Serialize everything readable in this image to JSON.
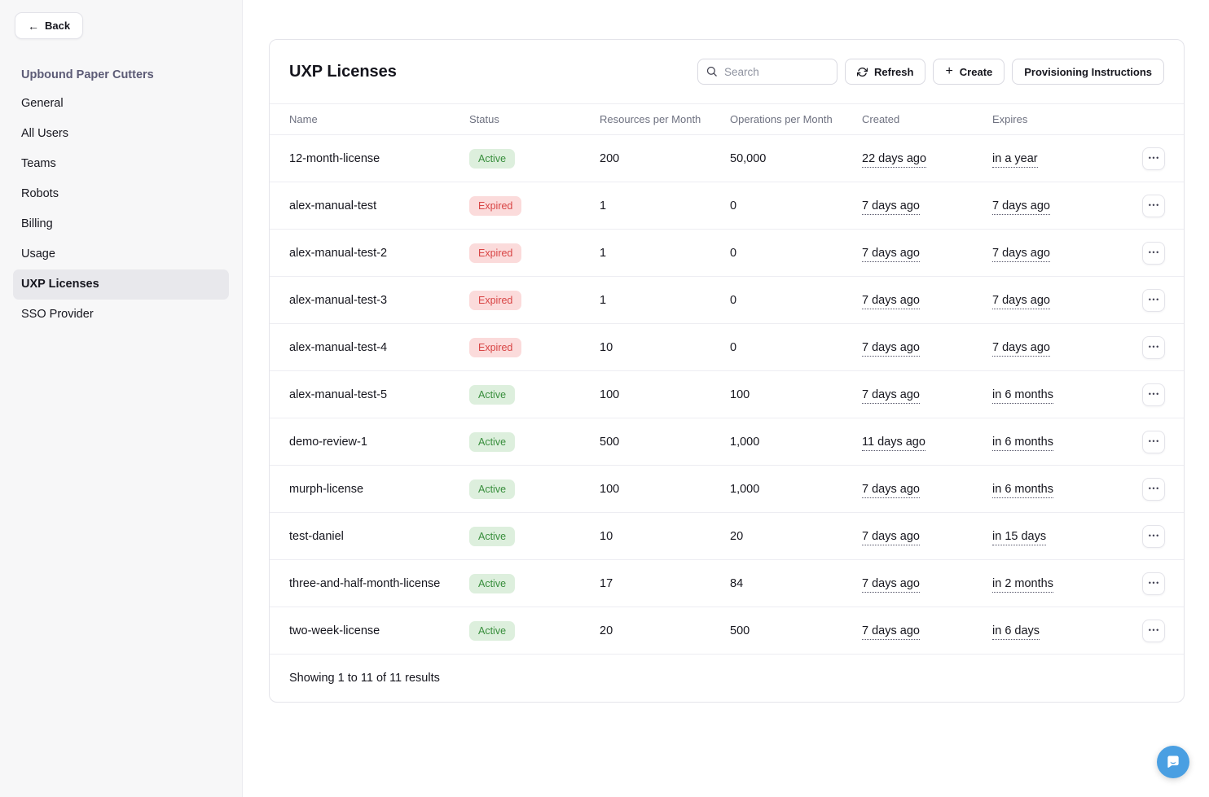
{
  "sidebar": {
    "back_label": "Back",
    "org_title": "Upbound Paper Cutters",
    "items": [
      {
        "label": "General",
        "active": false
      },
      {
        "label": "All Users",
        "active": false
      },
      {
        "label": "Teams",
        "active": false
      },
      {
        "label": "Robots",
        "active": false
      },
      {
        "label": "Billing",
        "active": false
      },
      {
        "label": "Usage",
        "active": false
      },
      {
        "label": "UXP Licenses",
        "active": true
      },
      {
        "label": "SSO Provider",
        "active": false
      }
    ]
  },
  "header": {
    "title": "UXP Licenses",
    "search_placeholder": "Search",
    "refresh_label": "Refresh",
    "create_label": "Create",
    "provisioning_label": "Provisioning Instructions"
  },
  "table": {
    "columns": [
      "Name",
      "Status",
      "Resources per Month",
      "Operations per Month",
      "Created",
      "Expires"
    ],
    "rows": [
      {
        "name": "12-month-license",
        "status": "Active",
        "resources": "200",
        "operations": "50,000",
        "created": "22 days ago",
        "expires": "in a year"
      },
      {
        "name": "alex-manual-test",
        "status": "Expired",
        "resources": "1",
        "operations": "0",
        "created": "7 days ago",
        "expires": "7 days ago"
      },
      {
        "name": "alex-manual-test-2",
        "status": "Expired",
        "resources": "1",
        "operations": "0",
        "created": "7 days ago",
        "expires": "7 days ago"
      },
      {
        "name": "alex-manual-test-3",
        "status": "Expired",
        "resources": "1",
        "operations": "0",
        "created": "7 days ago",
        "expires": "7 days ago"
      },
      {
        "name": "alex-manual-test-4",
        "status": "Expired",
        "resources": "10",
        "operations": "0",
        "created": "7 days ago",
        "expires": "7 days ago"
      },
      {
        "name": "alex-manual-test-5",
        "status": "Active",
        "resources": "100",
        "operations": "100",
        "created": "7 days ago",
        "expires": "in 6 months"
      },
      {
        "name": "demo-review-1",
        "status": "Active",
        "resources": "500",
        "operations": "1,000",
        "created": "11 days ago",
        "expires": "in 6 months"
      },
      {
        "name": "murph-license",
        "status": "Active",
        "resources": "100",
        "operations": "1,000",
        "created": "7 days ago",
        "expires": "in 6 months"
      },
      {
        "name": "test-daniel",
        "status": "Active",
        "resources": "10",
        "operations": "20",
        "created": "7 days ago",
        "expires": "in 15 days"
      },
      {
        "name": "three-and-half-month-license",
        "status": "Active",
        "resources": "17",
        "operations": "84",
        "created": "7 days ago",
        "expires": "in 2 months"
      },
      {
        "name": "two-week-license",
        "status": "Active",
        "resources": "20",
        "operations": "500",
        "created": "7 days ago",
        "expires": "in 6 days"
      }
    ],
    "footer_summary": "Showing 1 to 11 of 11 results"
  },
  "icons": {
    "back_arrow_glyph": "←",
    "plus_glyph": "+",
    "ellipsis_glyph": "•••",
    "search": "magnifier-icon",
    "refresh": "circular-arrows-icon",
    "chat": "chat-bubble-smile-icon"
  },
  "colors": {
    "status_active_bg": "#ddefdd",
    "status_active_text": "#388e3c",
    "status_expired_bg": "#fbdbdb",
    "status_expired_text": "#d84444",
    "chat_launcher_bg": "#4a9fe2",
    "sidebar_bg": "#f7f7f8",
    "org_title_text": "#5c5b76"
  }
}
